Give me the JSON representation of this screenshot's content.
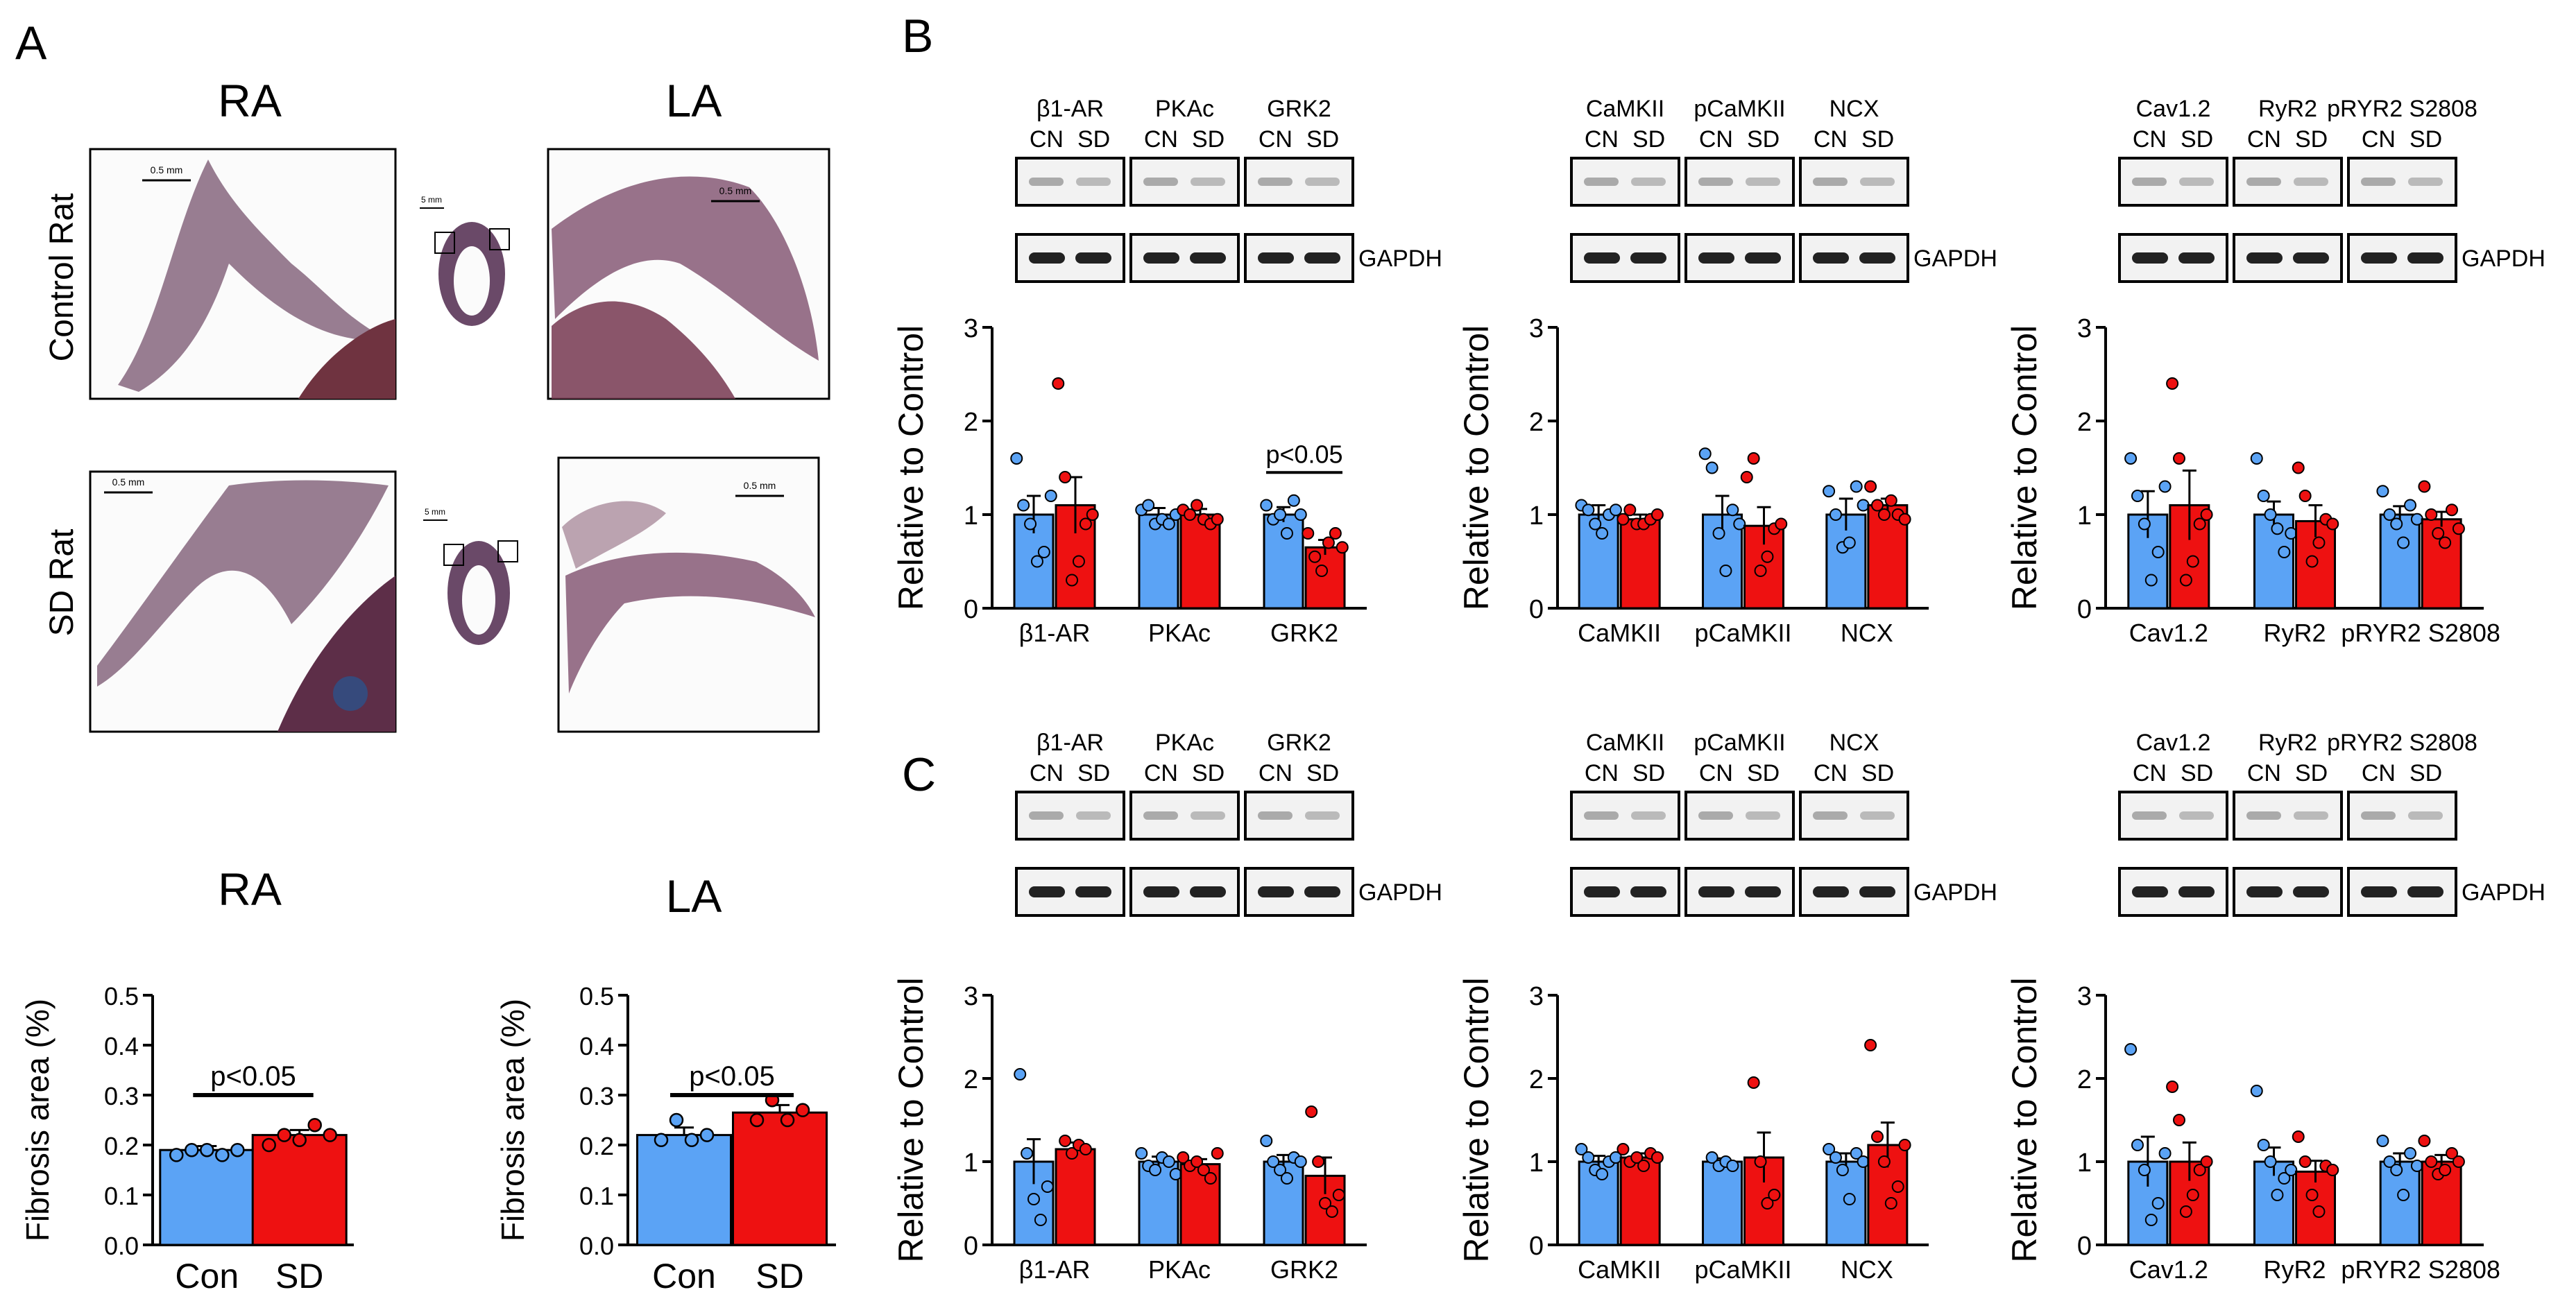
{
  "colors": {
    "control": "#5ba3f5",
    "sd": "#ee1111",
    "dot_outline": "#1a3a6a",
    "axis": "#000000"
  },
  "panel_a": {
    "label": "A",
    "col_labels": [
      "RA",
      "LA"
    ],
    "row_labels": [
      "Control Rat",
      "SD Rat"
    ],
    "scale_small": "0.5 mm",
    "scale_heart": "5 mm"
  },
  "panel_b": {
    "label": "B"
  },
  "panel_c": {
    "label": "C"
  },
  "blot_strings": {
    "cn": "CN",
    "sd": "SD",
    "gapdh": "GAPDH",
    "ylabel": "Relative to Control"
  },
  "fibrosis_strings": {
    "ylabel": "Fibrosis area (%)",
    "ptext": "p<0.05"
  },
  "chart_data": [
    {
      "id": "fibrosis-ra",
      "type": "bar",
      "title": "RA",
      "categories": [
        "Con",
        "SD"
      ],
      "values": [
        0.19,
        0.22
      ],
      "errors": [
        0.008,
        0.01
      ],
      "points": [
        [
          0.18,
          0.19,
          0.19,
          0.18,
          0.19
        ],
        [
          0.2,
          0.22,
          0.21,
          0.24,
          0.22
        ]
      ],
      "ylabel": "Fibrosis area (%)",
      "ylim": [
        0,
        0.5
      ],
      "yticks": [
        0.0,
        0.1,
        0.2,
        0.3,
        0.4,
        0.5
      ],
      "annotation": "p<0.05"
    },
    {
      "id": "fibrosis-la",
      "type": "bar",
      "title": "LA",
      "categories": [
        "Con",
        "SD"
      ],
      "values": [
        0.22,
        0.265
      ],
      "errors": [
        0.015,
        0.015
      ],
      "points": [
        [
          0.21,
          0.25,
          0.21,
          0.22
        ],
        [
          0.25,
          0.29,
          0.25,
          0.27
        ]
      ],
      "ylabel": "Fibrosis area (%)",
      "ylim": [
        0,
        0.5
      ],
      "yticks": [
        0.0,
        0.1,
        0.2,
        0.3,
        0.4,
        0.5
      ],
      "annotation": "p<0.05"
    },
    {
      "id": "b1",
      "type": "bar",
      "categories": [
        "β1-AR",
        "PKAc",
        "GRK2"
      ],
      "control": {
        "values": [
          1.0,
          1.0,
          1.0
        ],
        "errors": [
          0.2,
          0.07,
          0.08
        ],
        "points": [
          [
            1.6,
            1.1,
            0.9,
            0.5,
            0.6,
            1.2
          ],
          [
            1.05,
            1.1,
            0.9,
            0.95,
            0.9,
            1.0
          ],
          [
            1.1,
            0.95,
            1.0,
            0.8,
            1.15,
            1.0
          ]
        ]
      },
      "sd": {
        "values": [
          1.1,
          1.0,
          0.65
        ],
        "errors": [
          0.3,
          0.06,
          0.08
        ],
        "points": [
          [
            2.4,
            1.4,
            0.3,
            0.5,
            0.9,
            1.0
          ],
          [
            1.05,
            1.0,
            1.1,
            0.95,
            0.9,
            0.95
          ],
          [
            0.8,
            0.55,
            0.4,
            0.7,
            0.8,
            0.65
          ]
        ]
      },
      "ylabel": "Relative to Control",
      "ylim": [
        0,
        3
      ],
      "yticks": [
        0,
        1,
        2,
        3
      ],
      "annotation": "p<0.05"
    },
    {
      "id": "b2",
      "type": "bar",
      "categories": [
        "CaMKII",
        "pCaMKII",
        "NCX"
      ],
      "control": {
        "values": [
          1.0,
          1.0,
          1.0
        ],
        "errors": [
          0.1,
          0.2,
          0.17
        ],
        "points": [
          [
            1.1,
            1.05,
            0.9,
            0.8,
            1.0,
            1.05
          ],
          [
            1.65,
            1.5,
            0.8,
            0.4,
            1.05,
            0.9
          ],
          [
            1.25,
            1.0,
            0.65,
            0.7,
            1.3,
            1.1
          ]
        ]
      },
      "sd": {
        "values": [
          0.95,
          0.88,
          1.1
        ],
        "errors": [
          0.05,
          0.2,
          0.07
        ],
        "points": [
          [
            0.95,
            1.05,
            0.9,
            0.9,
            0.95,
            1.0
          ],
          [
            1.4,
            1.6,
            0.4,
            0.55,
            0.85,
            0.9
          ],
          [
            1.3,
            1.1,
            1.0,
            1.15,
            1.0,
            0.95
          ]
        ]
      },
      "ylabel": "Relative to Control",
      "ylim": [
        0,
        3
      ],
      "yticks": [
        0,
        1,
        2,
        3
      ]
    },
    {
      "id": "b3",
      "type": "bar",
      "categories": [
        "Cav1.2",
        "RyR2",
        "pRYR2 S2808"
      ],
      "control": {
        "values": [
          1.0,
          1.0,
          1.0
        ],
        "errors": [
          0.25,
          0.14,
          0.09
        ],
        "points": [
          [
            1.6,
            1.2,
            0.9,
            0.3,
            0.6,
            1.3
          ],
          [
            1.6,
            1.2,
            1.0,
            0.85,
            0.6,
            0.8
          ],
          [
            1.25,
            1.0,
            0.9,
            0.7,
            1.1,
            0.95
          ]
        ]
      },
      "sd": {
        "values": [
          1.1,
          0.93,
          0.95
        ],
        "errors": [
          0.37,
          0.17,
          0.08
        ],
        "points": [
          [
            2.4,
            1.6,
            0.3,
            0.5,
            0.9,
            1.0
          ],
          [
            1.5,
            1.2,
            0.5,
            0.7,
            0.95,
            0.9
          ],
          [
            1.3,
            1.0,
            0.8,
            0.7,
            1.05,
            0.85
          ]
        ]
      },
      "ylabel": "Relative to Control",
      "ylim": [
        0,
        3
      ],
      "yticks": [
        0,
        1,
        2,
        3
      ]
    },
    {
      "id": "c1",
      "type": "bar",
      "categories": [
        "β1-AR",
        "PKAc",
        "GRK2"
      ],
      "control": {
        "values": [
          1.0,
          1.0,
          1.0
        ],
        "errors": [
          0.27,
          0.06,
          0.08
        ],
        "points": [
          [
            2.05,
            1.1,
            0.55,
            0.3,
            0.7
          ],
          [
            1.1,
            0.95,
            0.9,
            1.05,
            1.0,
            0.85
          ],
          [
            1.25,
            1.0,
            0.9,
            0.8,
            1.05,
            1.0
          ]
        ]
      },
      "sd": {
        "values": [
          1.15,
          0.97,
          0.83
        ],
        "errors": [
          0.08,
          0.06,
          0.22
        ],
        "points": [
          [
            1.25,
            1.1,
            1.2,
            1.15
          ],
          [
            1.05,
            0.95,
            1.0,
            0.9,
            0.8,
            1.1
          ],
          [
            1.6,
            1.0,
            0.5,
            0.4,
            0.6
          ]
        ]
      },
      "ylabel": "Relative to Control",
      "ylim": [
        0,
        3
      ],
      "yticks": [
        0,
        1,
        2,
        3
      ]
    },
    {
      "id": "c2",
      "type": "bar",
      "categories": [
        "CaMKII",
        "pCaMKII",
        "NCX"
      ],
      "control": {
        "values": [
          1.0,
          1.0,
          1.0
        ],
        "errors": [
          0.07,
          0.04,
          0.1
        ],
        "points": [
          [
            1.15,
            1.05,
            0.9,
            0.85,
            1.0,
            1.05
          ],
          [
            1.05,
            0.95,
            1.0,
            0.95
          ],
          [
            1.15,
            1.05,
            0.9,
            0.55,
            1.1,
            1.0
          ]
        ]
      },
      "sd": {
        "values": [
          1.05,
          1.05,
          1.2
        ],
        "errors": [
          0.05,
          0.3,
          0.27
        ],
        "points": [
          [
            1.15,
            1.0,
            1.05,
            0.95,
            1.1,
            1.05
          ],
          [
            1.95,
            1.0,
            0.5,
            0.6
          ],
          [
            2.4,
            1.3,
            1.0,
            0.5,
            0.7,
            1.2
          ]
        ]
      },
      "ylabel": "Relative to Control",
      "ylim": [
        0,
        3
      ],
      "yticks": [
        0,
        1,
        2,
        3
      ]
    },
    {
      "id": "c3",
      "type": "bar",
      "categories": [
        "Cav1.2",
        "RyR2",
        "pRYR2 S2808"
      ],
      "control": {
        "values": [
          1.0,
          1.0,
          1.0
        ],
        "errors": [
          0.3,
          0.17,
          0.1
        ],
        "points": [
          [
            2.35,
            1.2,
            0.9,
            0.3,
            0.5,
            1.1
          ],
          [
            1.85,
            1.2,
            1.0,
            0.6,
            0.8,
            0.9
          ],
          [
            1.25,
            1.0,
            0.9,
            0.6,
            1.1,
            0.95
          ]
        ]
      },
      "sd": {
        "values": [
          1.0,
          0.88,
          1.0
        ],
        "errors": [
          0.23,
          0.13,
          0.08
        ],
        "points": [
          [
            1.9,
            1.5,
            0.4,
            0.6,
            0.9,
            1.0
          ],
          [
            1.3,
            1.0,
            0.6,
            0.4,
            0.95,
            0.9
          ],
          [
            1.25,
            1.0,
            0.85,
            0.9,
            1.1,
            1.0
          ]
        ]
      },
      "ylabel": "Relative to Control",
      "ylim": [
        0,
        3
      ],
      "yticks": [
        0,
        1,
        2,
        3
      ]
    }
  ]
}
